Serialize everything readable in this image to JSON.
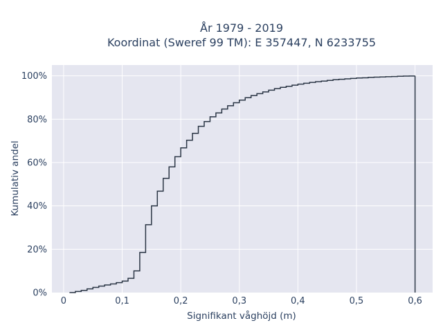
{
  "chart_data": {
    "type": "line",
    "title": "År 1979 - 2019",
    "subtitle": "Koordinat (Sweref 99 TM): E 357447, N 6233755",
    "xlabel": "Signifikant våghöjd (m)",
    "ylabel": "Kumulativ andel",
    "xlim": [
      -0.02,
      0.63
    ],
    "ylim": [
      0,
      1.05
    ],
    "x_ticks": [
      0,
      0.1,
      0.2,
      0.3,
      0.4,
      0.5,
      0.6
    ],
    "x_tick_labels": [
      "0",
      "0,1",
      "0,2",
      "0,3",
      "0,4",
      "0,5",
      "0,6"
    ],
    "y_ticks": [
      0,
      0.2,
      0.4,
      0.6,
      0.8,
      1.0
    ],
    "y_tick_labels": [
      "0%",
      "20%",
      "40%",
      "60%",
      "80%",
      "100%"
    ],
    "grid": true,
    "line_shape": "step",
    "colors": {
      "plot_bg": "#e5e6f0",
      "grid": "#ffffff",
      "line": "#2a3544",
      "text": "#2a3f5f"
    },
    "series": [
      {
        "x": [
          0.01,
          0.02,
          0.03,
          0.04,
          0.05,
          0.06,
          0.07,
          0.08,
          0.09,
          0.1,
          0.11,
          0.12,
          0.13,
          0.14,
          0.15,
          0.16,
          0.17,
          0.18,
          0.19,
          0.2,
          0.21,
          0.22,
          0.23,
          0.24,
          0.25,
          0.26,
          0.27,
          0.28,
          0.29,
          0.3,
          0.31,
          0.32,
          0.33,
          0.34,
          0.35,
          0.36,
          0.37,
          0.38,
          0.39,
          0.4,
          0.41,
          0.42,
          0.43,
          0.44,
          0.45,
          0.46,
          0.47,
          0.48,
          0.49,
          0.5,
          0.51,
          0.52,
          0.53,
          0.54,
          0.55,
          0.56,
          0.57,
          0.58,
          0.59,
          0.6
        ],
        "y": [
          0.0,
          0.005,
          0.01,
          0.017,
          0.024,
          0.03,
          0.035,
          0.04,
          0.046,
          0.053,
          0.066,
          0.1,
          0.185,
          0.313,
          0.4,
          0.468,
          0.527,
          0.58,
          0.627,
          0.668,
          0.703,
          0.735,
          0.767,
          0.789,
          0.811,
          0.829,
          0.847,
          0.862,
          0.876,
          0.888,
          0.899,
          0.909,
          0.918,
          0.926,
          0.934,
          0.941,
          0.947,
          0.952,
          0.957,
          0.962,
          0.966,
          0.97,
          0.973,
          0.976,
          0.979,
          0.982,
          0.984,
          0.986,
          0.988,
          0.99,
          0.991,
          0.993,
          0.994,
          0.995,
          0.996,
          0.997,
          0.998,
          0.999,
          0.9995,
          1.0
        ]
      }
    ]
  }
}
